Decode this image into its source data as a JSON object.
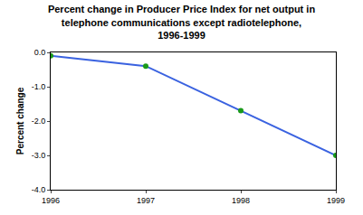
{
  "chart_data": {
    "type": "line",
    "title": [
      "Percent change in Producer Price Index for net output in",
      "telephone communications except radiotelephone,",
      "1996-1999"
    ],
    "y_label": "Percent change",
    "x": [
      1996,
      1997,
      1998,
      1999
    ],
    "values": [
      -0.1,
      -0.4,
      -1.7,
      -3.0
    ],
    "color": "#3a62e0",
    "marker": "circle",
    "marker_color": "#1a9a1a",
    "line_style": "solid",
    "xlim": [
      1996,
      1999
    ],
    "xticks": [
      1996,
      1997,
      1998,
      1999
    ],
    "ylim": [
      -4,
      0
    ],
    "yticks": [
      {
        "value": 0,
        "label": "0.0"
      },
      {
        "value": -1,
        "label": "-1.0"
      },
      {
        "value": -2,
        "label": "-2.0"
      },
      {
        "value": -3,
        "label": "-3.0"
      },
      {
        "value": -4,
        "label": "-4.0"
      }
    ],
    "grid": false
  }
}
